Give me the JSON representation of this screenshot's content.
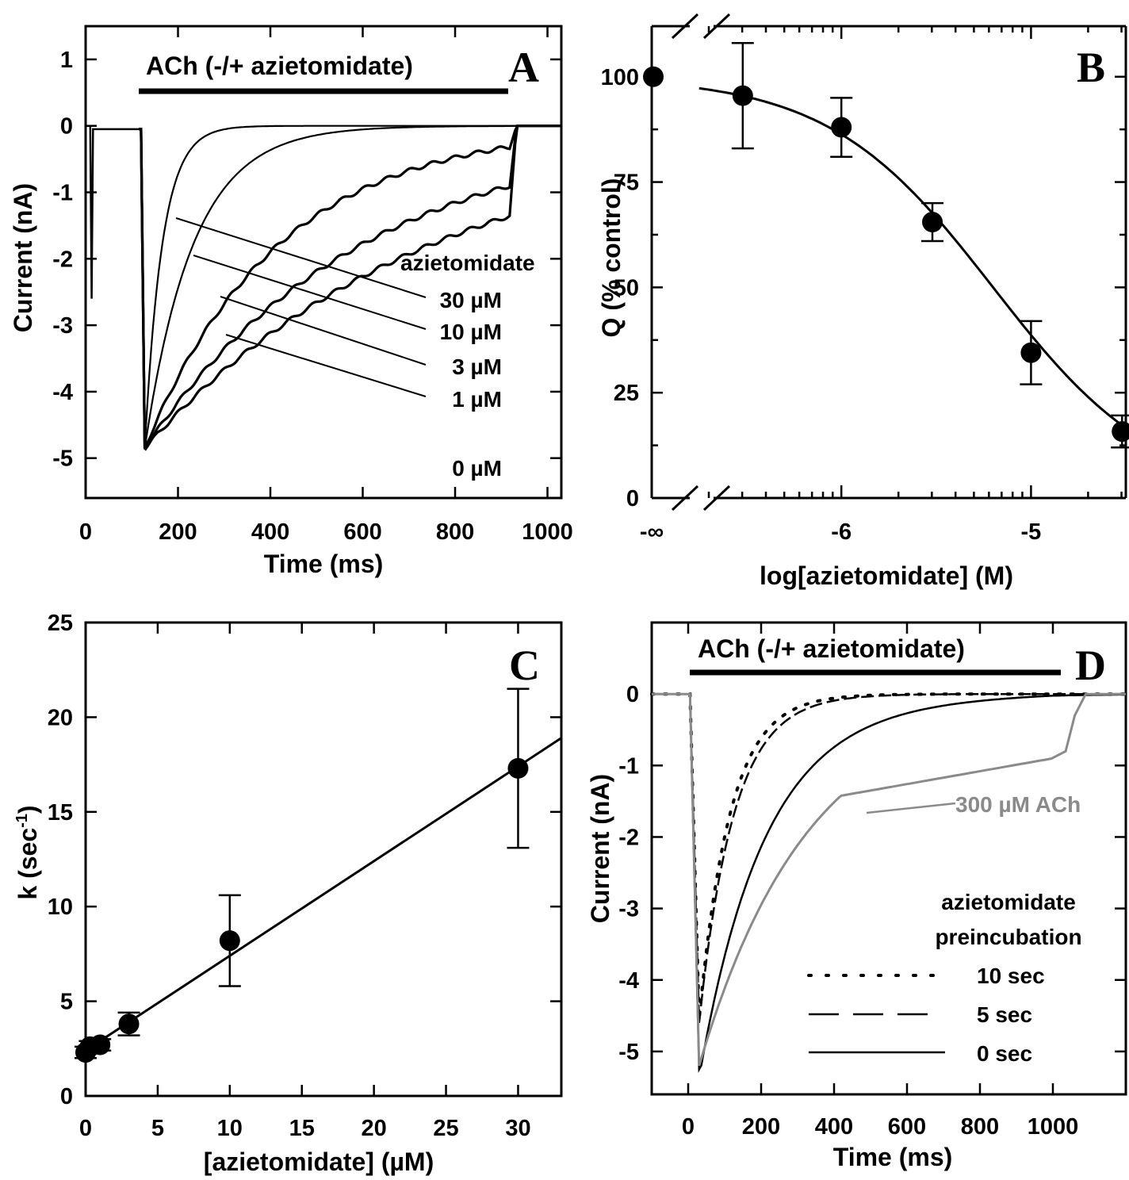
{
  "chart_data": [
    {
      "panel": "A",
      "type": "line",
      "panel_label": "A",
      "xlabel": "Time (ms)",
      "ylabel": "Current (nA)",
      "xlim": [
        0,
        1030
      ],
      "ylim": [
        -5.6,
        1.5
      ],
      "xticks": [
        0,
        200,
        400,
        600,
        800,
        1000
      ],
      "yticks": [
        1,
        0,
        -1,
        -2,
        -3,
        -4,
        -5
      ],
      "grid": false,
      "bar_label": "ACh (-/+ azietomidate)",
      "bar_range": [
        115,
        915
      ],
      "legend_title": "azietomidate",
      "series": [
        {
          "name": "30 µM",
          "peak": -4.85,
          "tau_ms": 38,
          "pulse_off_value": -0.02
        },
        {
          "name": "10 µM",
          "peak": -4.85,
          "tau_ms": 105,
          "pulse_off_value": -0.05
        },
        {
          "name": "3 µM",
          "peak": -4.85,
          "tau_ms": 290,
          "pulse_off_value": -0.35
        },
        {
          "name": "1 µM",
          "peak": -4.85,
          "tau_ms": 470,
          "pulse_off_value": -0.85
        },
        {
          "name": "0 µM",
          "peak": -4.85,
          "tau_ms": 620,
          "pulse_off_value": -1.25
        }
      ],
      "labels": [
        "30 µM",
        "10 µM",
        "3 µM",
        "1 µM",
        "0 µM"
      ]
    },
    {
      "panel": "B",
      "type": "scatter",
      "panel_label": "B",
      "xlabel": "log[azietomidate] (M)",
      "ylabel": "Q (% control)",
      "xlim": [
        -6.9,
        -4.5
      ],
      "ylim": [
        0,
        112
      ],
      "xticks": [
        -6,
        -5
      ],
      "xtick_labels": [
        "-6",
        "-5"
      ],
      "x_break_label": "-∞",
      "yticks": [
        0,
        25,
        50,
        75,
        100
      ],
      "grid": false,
      "points": [
        {
          "x": "-∞",
          "y": 100,
          "err": 0
        },
        {
          "x": -6.52,
          "y": 95.5,
          "err": 12.5
        },
        {
          "x": -6.0,
          "y": 88,
          "err": 7
        },
        {
          "x": -5.52,
          "y": 65.5,
          "err": 4.5
        },
        {
          "x": -5.0,
          "y": 34.5,
          "err": 7.5
        },
        {
          "x": -4.52,
          "y": 15.8,
          "err": 3.8
        }
      ],
      "fit": {
        "top": 100,
        "ic50_log": -5.2,
        "hill": 1
      }
    },
    {
      "panel": "C",
      "type": "scatter",
      "panel_label": "C",
      "xlabel": "[azietomidate] (µM)",
      "ylabel": "k (sec",
      "ylabel_sup": "-1",
      "ylabel_suffix": ")",
      "xlim": [
        -0.5,
        33
      ],
      "ylim": [
        0,
        25
      ],
      "xticks": [
        0,
        5,
        10,
        15,
        20,
        25,
        30
      ],
      "yticks": [
        0,
        5,
        10,
        15,
        20,
        25
      ],
      "grid": false,
      "points": [
        {
          "x": 0,
          "y": 2.3,
          "err": 0.3
        },
        {
          "x": 0.3,
          "y": 2.6,
          "err": 0.3
        },
        {
          "x": 1,
          "y": 2.7,
          "err": 0.3
        },
        {
          "x": 3,
          "y": 3.8,
          "err": 0.6
        },
        {
          "x": 10,
          "y": 8.2,
          "err": 2.4
        },
        {
          "x": 30,
          "y": 17.3,
          "err": 4.2
        }
      ],
      "fit": {
        "slope": 0.5,
        "intercept": 2.4
      }
    },
    {
      "panel": "D",
      "type": "line",
      "panel_label": "D",
      "xlabel": "Time (ms)",
      "ylabel": "Current (nA)",
      "xlim": [
        -100,
        1200
      ],
      "ylim": [
        -5.6,
        1.0
      ],
      "xticks": [
        0,
        200,
        400,
        600,
        800,
        1000
      ],
      "yticks": [
        0,
        -1,
        -2,
        -3,
        -4,
        -5
      ],
      "grid": false,
      "bar_label": "ACh (-/+ azietomidate)",
      "bar_range": [
        0,
        1000
      ],
      "annotation": "300 µM ACh",
      "legend_title_1": "azietomidate",
      "legend_title_2": "preincubation",
      "legend_placement": "bottom-right",
      "series": [
        {
          "name": "10 sec",
          "style": "dotted",
          "peak": -4.55,
          "tau_ms": 85
        },
        {
          "name": "5 sec",
          "style": "dashed",
          "peak": -4.6,
          "tau_ms": 95
        },
        {
          "name": "0 sec",
          "style": "solid",
          "peak": -5.25,
          "tau_ms": 180
        },
        {
          "name": "300 µM ACh",
          "style": "solid-gray",
          "peak": -5.2,
          "tau_ms": 300
        }
      ],
      "colors": {
        "gray_trace": "#8a8a8a",
        "ink": "#000000"
      }
    }
  ]
}
